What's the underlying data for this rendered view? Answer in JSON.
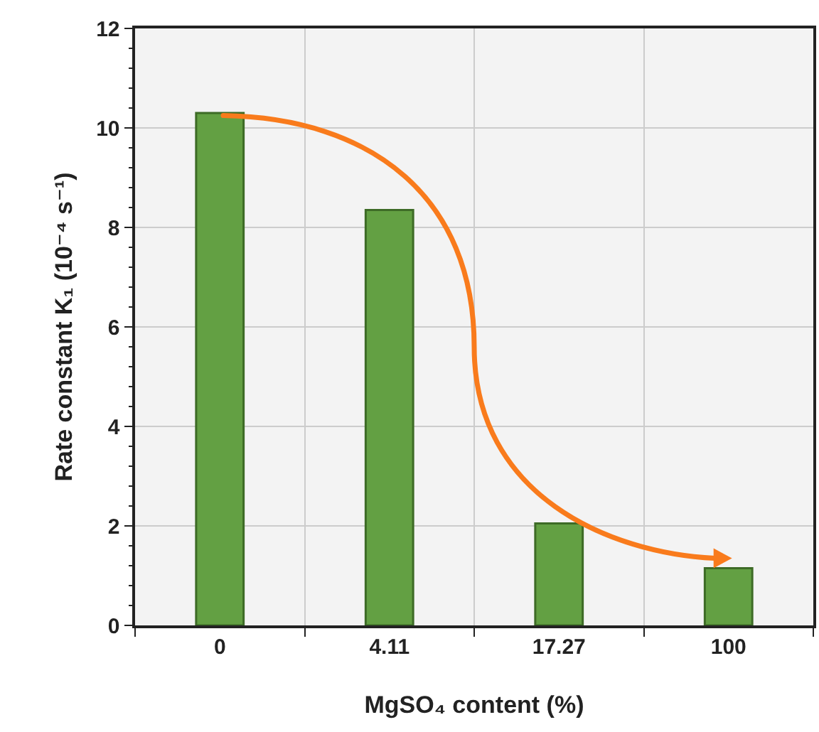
{
  "chart_data": {
    "type": "bar",
    "xlabel": "MgSO₄ content (%)",
    "ylabel": "Rate constant K₁ (10⁻⁴ s⁻¹)",
    "categories": [
      "0",
      "4.11",
      "17.27",
      "100"
    ],
    "values": [
      10.3,
      8.35,
      2.05,
      1.15
    ],
    "color": "#63a043",
    "ylim": [
      0,
      12
    ],
    "yticks": [
      0,
      2,
      4,
      6,
      8,
      10,
      12
    ],
    "grid": true
  }
}
